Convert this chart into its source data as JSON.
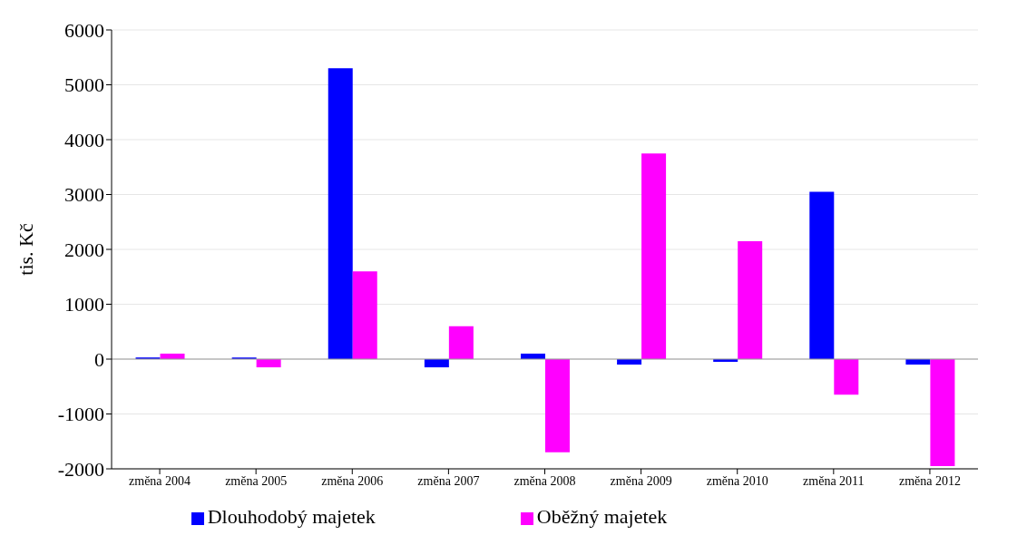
{
  "chart_data": {
    "type": "bar",
    "ylabel": "tis. Kč",
    "categories": [
      "změna 2004",
      "změna 2005",
      "změna 2006",
      "změna 2007",
      "změna 2008",
      "změna 2009",
      "změna 2010",
      "změna 2011",
      "změna 2012"
    ],
    "series": [
      {
        "name": "Dlouhodobý majetek",
        "color": "#0000ff",
        "values": [
          30,
          30,
          5300,
          -150,
          100,
          -100,
          -50,
          3050,
          -100
        ]
      },
      {
        "name": "Oběžný majetek",
        "color": "#ff00ff",
        "values": [
          100,
          -150,
          1600,
          600,
          -1700,
          3750,
          2150,
          -650,
          -1950
        ]
      }
    ],
    "ylim": [
      -2000,
      6000
    ],
    "yticks": [
      -2000,
      -1000,
      0,
      1000,
      2000,
      3000,
      4000,
      5000,
      6000
    ],
    "grid": "y",
    "legend": "bottom"
  }
}
